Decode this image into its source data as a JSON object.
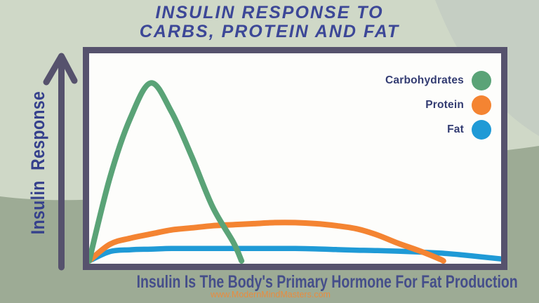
{
  "title": {
    "line1": "INSULIN RESPONSE TO",
    "line2": "CARBS, PROTEIN AND FAT"
  },
  "y_axis_label": "Insulin Response",
  "legend": [
    {
      "label": "Carbohydrates",
      "color": "#5aa377"
    },
    {
      "label": "Protein",
      "color": "#f48432"
    },
    {
      "label": "Fat",
      "color": "#1f9ad6"
    }
  ],
  "caption": "Insulin Is The Body's Primary Hormone For Fat Production",
  "website": "www.ModernMindMasters.com",
  "colors": {
    "background": "#cfd8c7",
    "background_arc": "#c5cec3",
    "background_bottom": "#9dab95",
    "panel_border": "#56526d",
    "panel_bg": "#fdfdfb",
    "arrow": "#56526d",
    "title_text": "#3c4797",
    "ylabel_text": "#35408c",
    "caption_text": "#454e8a",
    "legend_text": "#333c72",
    "url_text": "#e98c3e"
  },
  "chart_data": {
    "type": "line",
    "title": "Insulin Response to Carbs, Protein and Fat",
    "xlabel": "",
    "ylabel": "Insulin Response",
    "x_ticks": [],
    "y_ticks": [],
    "grid": false,
    "legend_position": "upper right",
    "axes_note": "qualitative chart: unlabeled time x-axis, unlabeled insulin-response y-axis with upward arrow",
    "xlim": [
      0,
      10
    ],
    "ylim": [
      0,
      1
    ],
    "x": [
      0,
      0.5,
      1,
      1.5,
      2,
      2.5,
      3,
      3.5,
      3.7,
      4,
      4.5,
      5,
      5.5,
      6,
      6.5,
      7,
      7.5,
      8,
      8.5,
      8.6,
      9,
      9.5,
      10
    ],
    "series": [
      {
        "name": "Carbohydrates",
        "color": "#5aa377",
        "values": [
          0,
          0.4,
          0.69,
          0.86,
          0.72,
          0.5,
          0.26,
          0.09,
          0,
          null,
          null,
          null,
          null,
          null,
          null,
          null,
          null,
          null,
          null,
          null,
          null,
          null,
          null
        ]
      },
      {
        "name": "Protein",
        "color": "#f48432",
        "values": [
          0,
          0.08,
          0.11,
          0.13,
          0.15,
          0.16,
          0.17,
          0.175,
          0.177,
          0.18,
          0.185,
          0.185,
          0.18,
          0.17,
          0.155,
          0.125,
          0.085,
          0.05,
          0.01,
          0,
          null,
          null,
          null
        ]
      },
      {
        "name": "Fat",
        "color": "#1f9ad6",
        "values": [
          0,
          0.045,
          0.054,
          0.057,
          0.06,
          0.06,
          0.06,
          0.06,
          0.06,
          0.06,
          0.06,
          0.06,
          0.058,
          0.055,
          0.052,
          0.05,
          0.047,
          0.043,
          0.038,
          0.037,
          0.03,
          0.02,
          0.01
        ]
      }
    ]
  }
}
